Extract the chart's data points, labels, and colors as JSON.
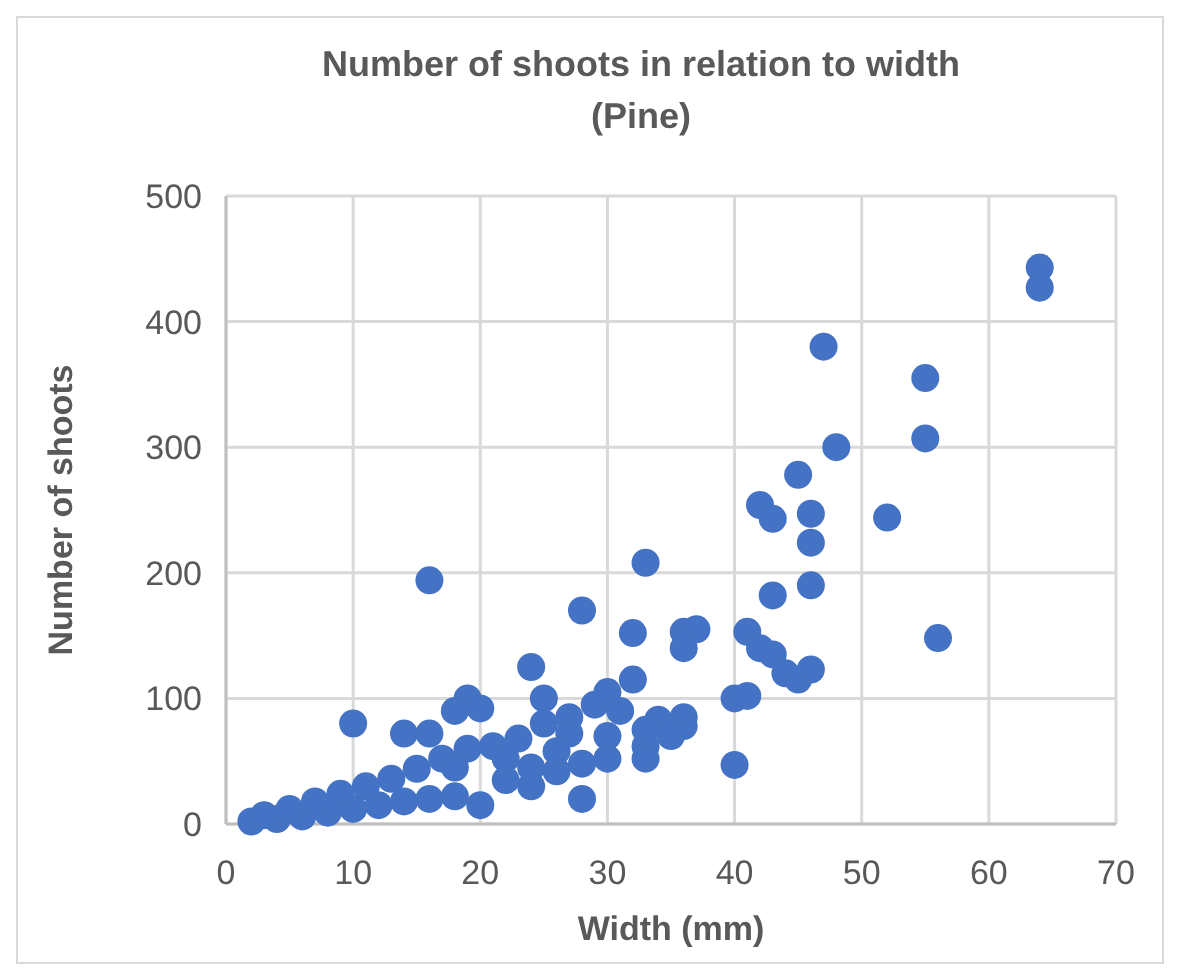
{
  "chart_data": {
    "type": "scatter",
    "title": "Number of shoots in relation to width\n(Pine)",
    "xlabel": "Width (mm)",
    "ylabel": "Number of shoots",
    "xlim": [
      0,
      70
    ],
    "ylim": [
      0,
      500
    ],
    "xticks": [
      0,
      10,
      20,
      30,
      40,
      50,
      60,
      70
    ],
    "yticks": [
      0,
      100,
      200,
      300,
      400,
      500
    ],
    "grid": true,
    "marker": "circle",
    "color": "#4472c4",
    "x": [
      64,
      64,
      55,
      55,
      47,
      48,
      52,
      56,
      45,
      42,
      43,
      46,
      46,
      43,
      46,
      41,
      42,
      43,
      44,
      45,
      46,
      40,
      41,
      40,
      33,
      36,
      37,
      36,
      32,
      28,
      33,
      33,
      36,
      36,
      34,
      32,
      30,
      28,
      24,
      16,
      10,
      14,
      16,
      19,
      20,
      18,
      25,
      27,
      2,
      4,
      6,
      8,
      10,
      12,
      14,
      16,
      18,
      20,
      22,
      24,
      26,
      28,
      30,
      3,
      5,
      7,
      9,
      11,
      13,
      15,
      17,
      19,
      21,
      23,
      25,
      27,
      29,
      31,
      33,
      35,
      18,
      22,
      26,
      30,
      24
    ],
    "values": [
      443,
      427,
      355,
      307,
      380,
      300,
      244,
      148,
      278,
      254,
      243,
      247,
      224,
      182,
      190,
      153,
      140,
      135,
      120,
      115,
      123,
      100,
      102,
      47,
      208,
      153,
      155,
      140,
      152,
      170,
      62,
      52,
      85,
      78,
      83,
      115,
      105,
      20,
      125,
      194,
      80,
      72,
      72,
      100,
      92,
      90,
      100,
      85,
      2,
      4,
      6,
      9,
      12,
      15,
      18,
      20,
      22,
      15,
      35,
      30,
      42,
      48,
      52,
      7,
      12,
      18,
      24,
      30,
      36,
      44,
      52,
      60,
      62,
      68,
      80,
      72,
      95,
      90,
      75,
      70,
      45,
      52,
      58,
      70,
      45
    ]
  }
}
